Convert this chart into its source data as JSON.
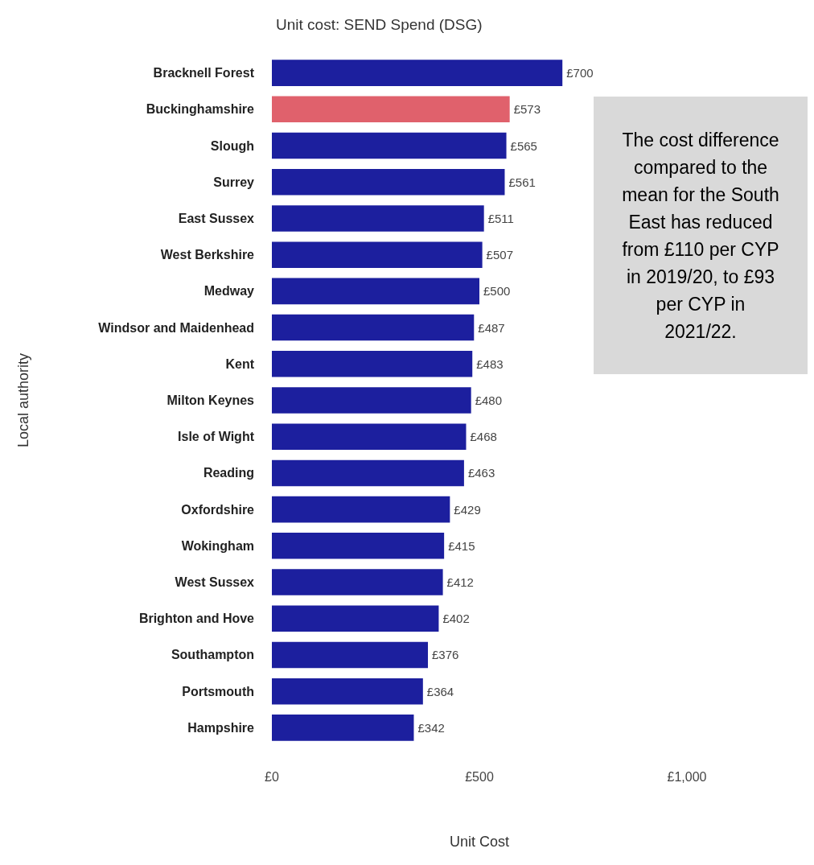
{
  "chart_data": {
    "type": "bar",
    "orientation": "horizontal",
    "title": "Unit cost: SEND Spend (DSG)",
    "xlabel": "Unit Cost",
    "ylabel": "Local authority",
    "categories": [
      "Bracknell Forest",
      "Buckinghamshire",
      "Slough",
      "Surrey",
      "East Sussex",
      "West Berkshire",
      "Medway",
      "Windsor and Maidenhead",
      "Kent",
      "Milton Keynes",
      "Isle of Wight",
      "Reading",
      "Oxfordshire",
      "Wokingham",
      "West Sussex",
      "Brighton and Hove",
      "Southampton",
      "Portsmouth",
      "Hampshire"
    ],
    "values": [
      700,
      573,
      565,
      561,
      511,
      507,
      500,
      487,
      483,
      480,
      468,
      463,
      429,
      415,
      412,
      402,
      376,
      364,
      342
    ],
    "colors": [
      "#1c1f9e",
      "#e0616c",
      "#1c1f9e",
      "#1c1f9e",
      "#1c1f9e",
      "#1c1f9e",
      "#1c1f9e",
      "#1c1f9e",
      "#1c1f9e",
      "#1c1f9e",
      "#1c1f9e",
      "#1c1f9e",
      "#1c1f9e",
      "#1c1f9e",
      "#1c1f9e",
      "#1c1f9e",
      "#1c1f9e",
      "#1c1f9e",
      "#1c1f9e"
    ],
    "value_labels": [
      "£700",
      "£573",
      "£565",
      "£561",
      "£511",
      "£507",
      "£500",
      "£487",
      "£483",
      "£480",
      "£468",
      "£463",
      "£429",
      "£415",
      "£412",
      "£402",
      "£376",
      "£364",
      "£342"
    ],
    "xlim": [
      0,
      1000
    ],
    "xticks": [
      {
        "value": 0,
        "label": "£0"
      },
      {
        "value": 500,
        "label": "£500"
      },
      {
        "value": 1000,
        "label": "£1,000"
      }
    ],
    "grid": false,
    "annotations": [
      "The cost difference compared to the mean for the South East has reduced from £110 per CYP in 2019/20, to £93 per CYP in 2021/22."
    ]
  }
}
